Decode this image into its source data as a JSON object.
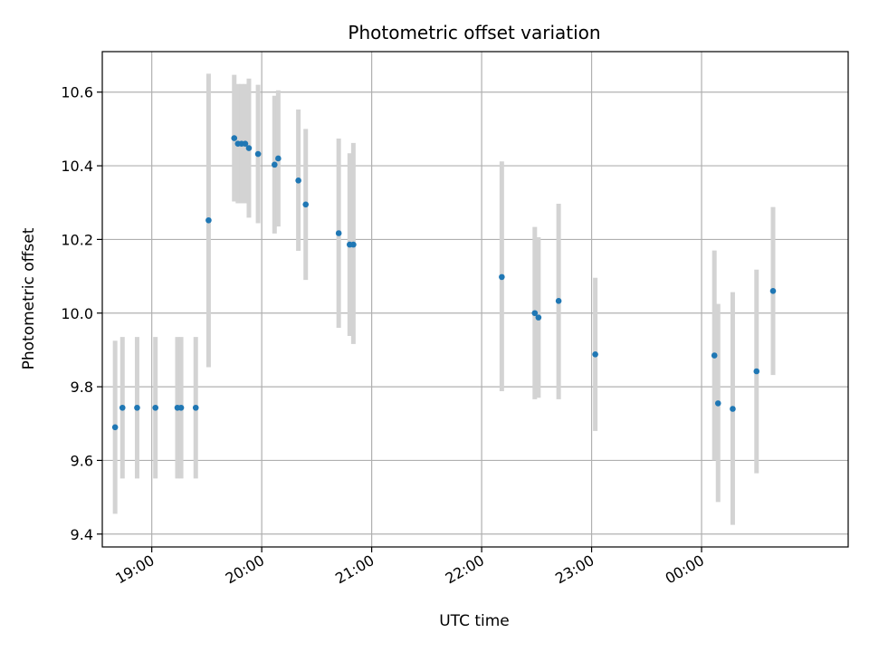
{
  "chart_data": {
    "type": "scatter",
    "title": "Photometric offset variation",
    "xlabel": "UTC time",
    "ylabel": "Photometric offset",
    "xlim": [
      "18:33",
      "01:20"
    ],
    "ylim": [
      9.365,
      10.71
    ],
    "x_ticks": [
      "19:00",
      "20:00",
      "21:00",
      "22:00",
      "23:00",
      "00:00"
    ],
    "y_ticks": [
      "9.4",
      "9.6",
      "9.8",
      "10.0",
      "10.2",
      "10.4",
      "10.6"
    ],
    "grid": true,
    "colors": {
      "point": "#1f77b4",
      "errorbar": "#d3d3d3",
      "grid": "#b0b0b0"
    },
    "points": [
      {
        "x": "18:40",
        "y": 9.69,
        "low": 9.455,
        "high": 9.925
      },
      {
        "x": "18:44",
        "y": 9.743,
        "low": 9.551,
        "high": 9.935
      },
      {
        "x": "18:52",
        "y": 9.743,
        "low": 9.551,
        "high": 9.935
      },
      {
        "x": "19:02",
        "y": 9.743,
        "low": 9.551,
        "high": 9.935
      },
      {
        "x": "19:14",
        "y": 9.743,
        "low": 9.551,
        "high": 9.935
      },
      {
        "x": "19:16",
        "y": 9.743,
        "low": 9.551,
        "high": 9.935
      },
      {
        "x": "19:24",
        "y": 9.743,
        "low": 9.551,
        "high": 9.935
      },
      {
        "x": "19:31",
        "y": 10.252,
        "low": 9.853,
        "high": 10.65
      },
      {
        "x": "19:45",
        "y": 10.475,
        "low": 10.303,
        "high": 10.647
      },
      {
        "x": "19:47",
        "y": 10.46,
        "low": 10.298,
        "high": 10.622
      },
      {
        "x": "19:49",
        "y": 10.46,
        "low": 10.298,
        "high": 10.622
      },
      {
        "x": "19:51",
        "y": 10.46,
        "low": 10.298,
        "high": 10.622
      },
      {
        "x": "19:53",
        "y": 10.448,
        "low": 10.259,
        "high": 10.637
      },
      {
        "x": "19:58",
        "y": 10.432,
        "low": 10.244,
        "high": 10.62
      },
      {
        "x": "20:07",
        "y": 10.403,
        "low": 10.216,
        "high": 10.59
      },
      {
        "x": "20:09",
        "y": 10.42,
        "low": 10.235,
        "high": 10.605
      },
      {
        "x": "20:20",
        "y": 10.36,
        "low": 10.169,
        "high": 10.553
      },
      {
        "x": "20:24",
        "y": 10.295,
        "low": 10.09,
        "high": 10.5
      },
      {
        "x": "20:42",
        "y": 10.217,
        "low": 9.96,
        "high": 10.474
      },
      {
        "x": "20:48",
        "y": 10.186,
        "low": 9.938,
        "high": 10.434
      },
      {
        "x": "20:50",
        "y": 10.186,
        "low": 9.916,
        "high": 10.462
      },
      {
        "x": "22:11",
        "y": 10.098,
        "low": 9.788,
        "high": 10.412
      },
      {
        "x": "22:29",
        "y": 10.0,
        "low": 9.766,
        "high": 10.234
      },
      {
        "x": "22:31",
        "y": 9.988,
        "low": 9.77,
        "high": 10.206
      },
      {
        "x": "22:42",
        "y": 10.033,
        "low": 9.766,
        "high": 10.297
      },
      {
        "x": "23:02",
        "y": 9.888,
        "low": 9.68,
        "high": 10.096
      },
      {
        "x": "00:07",
        "y": 9.885,
        "low": 9.6,
        "high": 10.17
      },
      {
        "x": "00:09",
        "y": 9.755,
        "low": 9.487,
        "high": 10.025
      },
      {
        "x": "00:17",
        "y": 9.74,
        "low": 9.425,
        "high": 10.057
      },
      {
        "x": "00:30",
        "y": 9.842,
        "low": 9.565,
        "high": 10.118
      },
      {
        "x": "00:39",
        "y": 10.06,
        "low": 9.832,
        "high": 10.288
      }
    ]
  }
}
